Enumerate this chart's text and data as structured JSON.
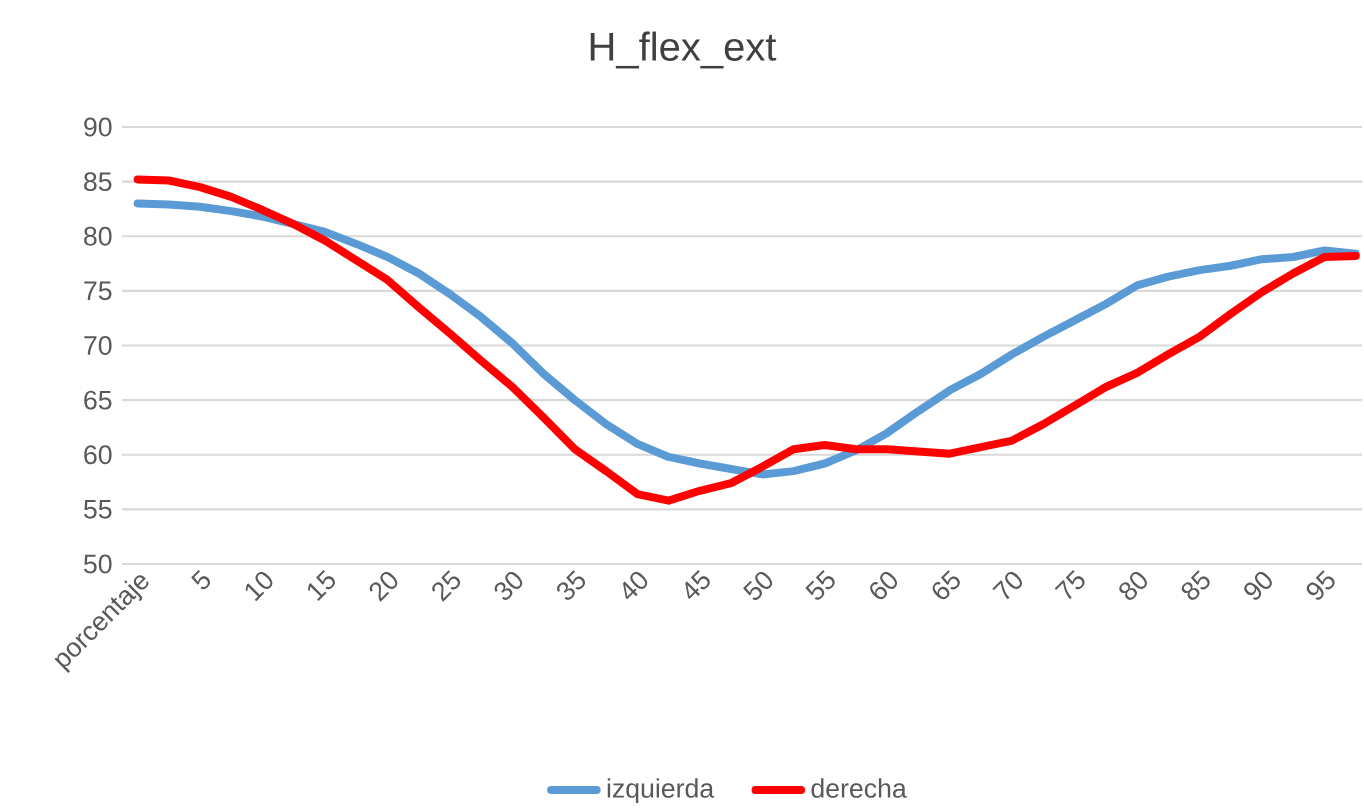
{
  "chart_data": {
    "type": "line",
    "title": "H_flex_ext",
    "categories": [
      "porcentaje",
      null,
      "5",
      null,
      "10",
      null,
      "15",
      null,
      "20",
      null,
      "25",
      null,
      "30",
      null,
      "35",
      null,
      "40",
      null,
      "45",
      null,
      "50",
      null,
      "55",
      null,
      "60",
      null,
      "65",
      null,
      "70",
      null,
      "75",
      null,
      "80",
      null,
      "85",
      null,
      "90",
      null,
      "95",
      null
    ],
    "series": [
      {
        "name": "izquierda",
        "color": "#5b9bd5",
        "values": [
          83.0,
          82.9,
          82.7,
          82.3,
          81.8,
          81.1,
          80.4,
          79.3,
          78.1,
          76.6,
          74.7,
          72.6,
          70.2,
          67.4,
          65.0,
          62.8,
          61.0,
          59.8,
          59.2,
          58.7,
          58.2,
          58.5,
          59.2,
          60.4,
          62.0,
          64.0,
          65.9,
          67.4,
          69.2,
          70.8,
          72.3,
          73.8,
          75.5,
          76.3,
          76.9,
          77.3,
          77.9,
          78.1,
          78.7,
          78.4
        ]
      },
      {
        "name": "derecha",
        "color": "#ff0000",
        "values": [
          85.2,
          85.1,
          84.5,
          83.6,
          82.4,
          81.1,
          79.6,
          77.8,
          76.0,
          73.5,
          71.1,
          68.6,
          66.2,
          63.4,
          60.5,
          58.5,
          56.4,
          55.8,
          56.7,
          57.4,
          58.9,
          60.5,
          60.9,
          60.5,
          60.5,
          60.3,
          60.1,
          60.7,
          61.3,
          62.8,
          64.5,
          66.2,
          67.5,
          69.2,
          70.8,
          72.9,
          74.9,
          76.6,
          78.1,
          78.2
        ]
      }
    ],
    "ylim": [
      50,
      90
    ],
    "yticks": [
      50,
      55,
      60,
      65,
      70,
      75,
      80,
      85,
      90
    ],
    "grid": "y",
    "legend": "bottom"
  }
}
